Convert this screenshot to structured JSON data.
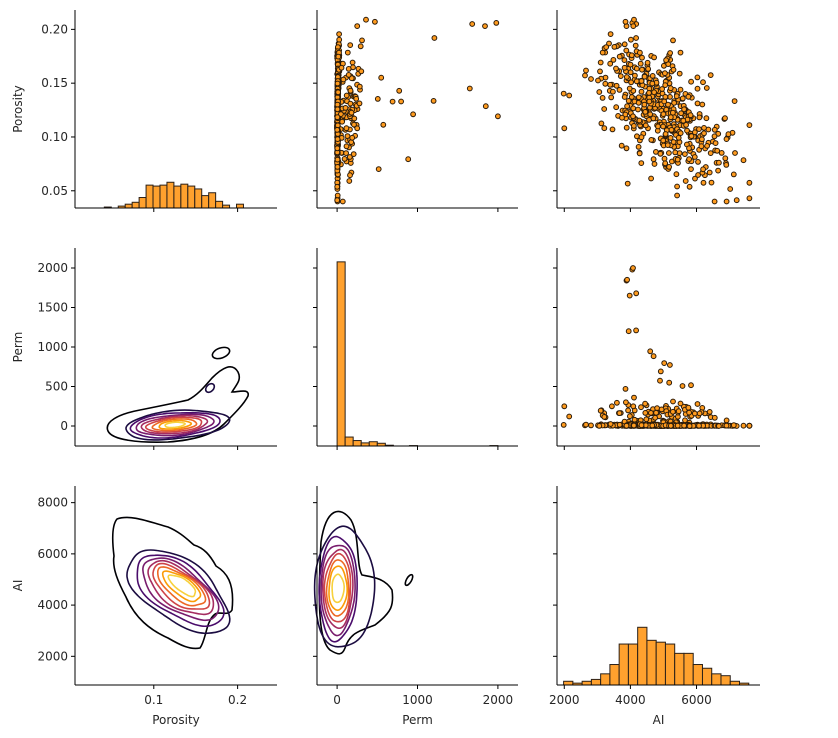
{
  "chart_data": {
    "type": "pairplot",
    "variables": [
      "Porosity",
      "Perm",
      "AI"
    ],
    "colors": {
      "bar_fill": "#ffa12e",
      "point_fill": "#ff9b1e",
      "edge": "#2b1b0a",
      "contour_colormap": "inferno",
      "contour_levels_colors": [
        "#000004",
        "#1b0c41",
        "#4a0c6b",
        "#781c6d",
        "#a52c60",
        "#cf4446",
        "#ed6925",
        "#fb9b06",
        "#f7d13d"
      ]
    },
    "axes": {
      "Porosity": {
        "label": "Porosity",
        "range": [
          0.006,
          0.247
        ],
        "yrange": [
          0.034,
          0.218
        ],
        "xticks": [
          0.1,
          0.2
        ],
        "xtick_labels": [
          "0.1",
          "0.2"
        ],
        "yticks": [
          0.05,
          0.1,
          0.15,
          0.2
        ],
        "ytick_labels": [
          "0.05",
          "0.10",
          "0.15",
          "0.20"
        ]
      },
      "Perm": {
        "label": "Perm",
        "range": [
          -250,
          2250
        ],
        "yrange": [
          -253,
          2253
        ],
        "xticks": [
          0,
          1000,
          2000
        ],
        "xtick_labels": [
          "0",
          "1000",
          "2000"
        ],
        "yticks": [
          0,
          500,
          1000,
          1500,
          2000
        ],
        "ytick_labels": [
          "0",
          "500",
          "1000",
          "1500",
          "2000"
        ]
      },
      "AI": {
        "label": "AI",
        "range": [
          1780,
          7920
        ],
        "yrange": [
          880,
          8650
        ],
        "xticks": [
          2000,
          4000,
          6000
        ],
        "xtick_labels": [
          "2000",
          "4000",
          "6000"
        ],
        "yticks": [
          2000,
          4000,
          6000,
          8000
        ],
        "ytick_labels": [
          "2000",
          "4000",
          "6000",
          "8000"
        ]
      }
    },
    "histograms": {
      "Porosity": {
        "bin_start": 0.041,
        "bin_width": 0.0083,
        "counts": [
          1,
          0,
          2,
          4,
          6,
          11,
          24,
          23,
          24,
          27,
          23,
          25,
          23,
          20,
          13,
          16,
          7,
          3,
          0,
          4
        ]
      },
      "Perm": {
        "bin_start": 0,
        "bin_width": 100,
        "counts": [
          473,
          23,
          14,
          8,
          11,
          7,
          2,
          0,
          0,
          1,
          0,
          0,
          0,
          0,
          0,
          0,
          0,
          0,
          0,
          1
        ]
      },
      "AI": {
        "bin_start": 1980,
        "bin_width": 280,
        "counts": [
          2,
          1,
          2,
          3,
          6,
          11,
          22,
          22,
          31,
          24,
          23,
          22,
          17,
          17,
          11,
          9,
          6,
          5,
          2,
          1
        ]
      }
    },
    "scatter_summary": {
      "Porosity_vs_Perm": "Perm 0–2000, most points near Perm≈0 with Porosity 0.06–0.17; high-Perm tail with Porosity 0.16–0.21",
      "Porosity_vs_AI": "negative correlation; AI 2000–7500, Porosity 0.04–0.21",
      "Perm_vs_AI": "most Perm near 0 across AI 2000–7500; outliers up to Perm≈2000 near AI≈4000"
    },
    "kde_summary": {
      "Perm_vs_Porosity": "peak near Porosity≈0.12, Perm≈20; outer contour extends to Porosity 0.2, Perm≈950",
      "AI_vs_Porosity": "peak near Porosity≈0.13, AI≈4900; elongated, negative slope",
      "AI_vs_Perm": "peak near Perm≈0, AI≈4700; outer contour extends to Perm≈700"
    }
  }
}
